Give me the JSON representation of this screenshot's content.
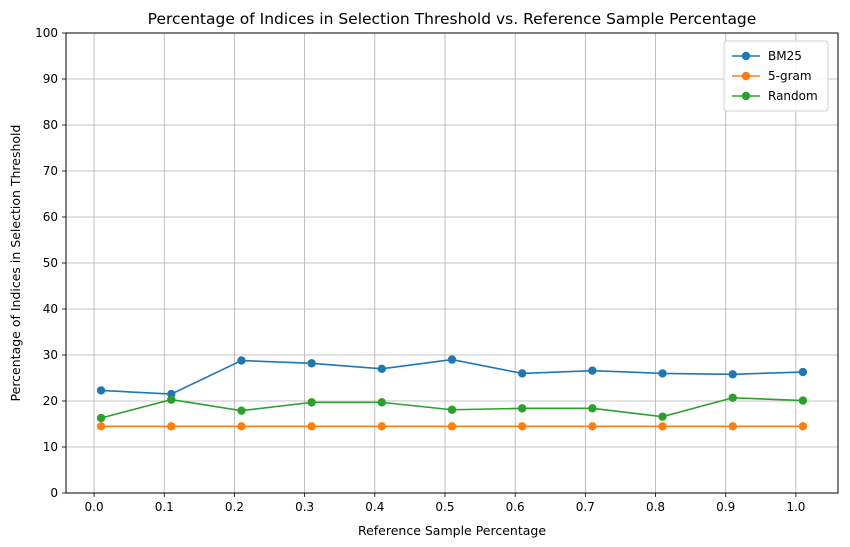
{
  "chart_data": {
    "type": "line",
    "title": "Percentage of Indices in Selection Threshold vs. Reference Sample Percentage",
    "xlabel": "Reference Sample Percentage",
    "ylabel": "Percentage of Indices in Selection Threshold",
    "x": [
      0.01,
      0.11,
      0.21,
      0.31,
      0.41,
      0.51,
      0.61,
      0.71,
      0.81,
      0.91,
      1.01
    ],
    "xlim": [
      -0.04,
      1.06
    ],
    "ylim": [
      0,
      100
    ],
    "xticks": [
      "0.0",
      "0.1",
      "0.2",
      "0.3",
      "0.4",
      "0.5",
      "0.6",
      "0.7",
      "0.8",
      "0.9",
      "1.0"
    ],
    "xtick_values": [
      0.0,
      0.1,
      0.2,
      0.3,
      0.4,
      0.5,
      0.6,
      0.7,
      0.8,
      0.9,
      1.0
    ],
    "yticks": [
      "0",
      "10",
      "20",
      "30",
      "40",
      "50",
      "60",
      "70",
      "80",
      "90",
      "100"
    ],
    "ytick_values": [
      0,
      10,
      20,
      30,
      40,
      50,
      60,
      70,
      80,
      90,
      100
    ],
    "grid": true,
    "legend_position": "top-right",
    "series": [
      {
        "name": "BM25",
        "color": "#1f77b4",
        "values": [
          22.3,
          21.5,
          28.8,
          28.2,
          27.0,
          29.0,
          26.0,
          26.6,
          26.0,
          25.8,
          26.3
        ]
      },
      {
        "name": "5-gram",
        "color": "#ff7f0e",
        "values": [
          14.5,
          14.5,
          14.5,
          14.5,
          14.5,
          14.5,
          14.5,
          14.5,
          14.5,
          14.5,
          14.5
        ]
      },
      {
        "name": "Random",
        "color": "#2ca02c",
        "values": [
          16.3,
          20.3,
          17.9,
          19.7,
          19.7,
          18.1,
          18.4,
          18.4,
          16.6,
          20.7,
          20.1
        ]
      }
    ]
  }
}
